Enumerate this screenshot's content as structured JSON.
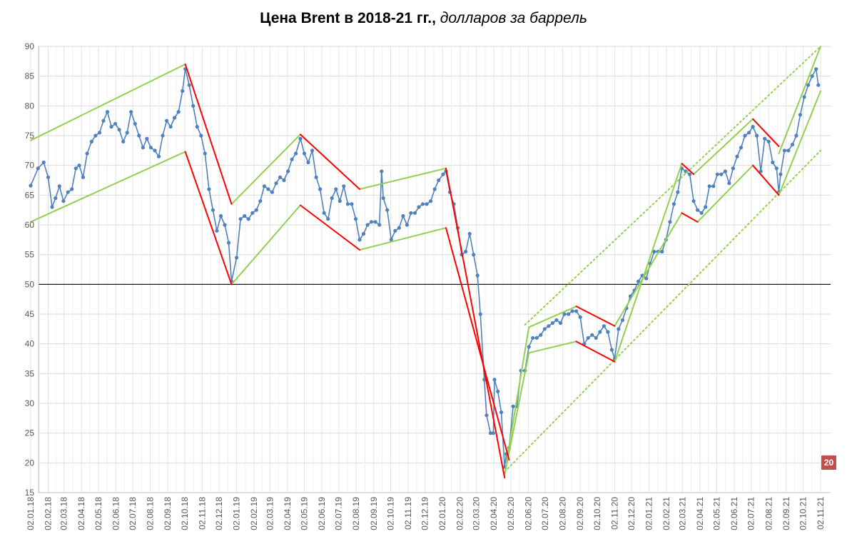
{
  "chart_data": {
    "type": "line",
    "title_bold": "Цена Brent в 2018-21 гг.,",
    "title_italic": "долларов за баррель",
    "xlabel": "",
    "ylabel": "",
    "ylim": [
      15,
      90
    ],
    "yticks": [
      15,
      20,
      25,
      30,
      35,
      40,
      45,
      50,
      55,
      60,
      65,
      70,
      75,
      80,
      85,
      90
    ],
    "grid": true,
    "reference_line": 50,
    "x_tick_labels": [
      "02.01.18",
      "02.02.18",
      "02.03.18",
      "02.04.18",
      "02.05.18",
      "02.06.18",
      "02.07.18",
      "02.08.18",
      "02.09.18",
      "02.10.18",
      "02.11.18",
      "02.12.18",
      "02.01.19",
      "02.02.19",
      "02.03.19",
      "02.04.19",
      "02.05.19",
      "02.06.19",
      "02.07.19",
      "02.08.19",
      "02.09.19",
      "02.10.19",
      "02.11.19",
      "02.12.19",
      "02.01.20",
      "02.02.20",
      "02.03.20",
      "02.04.20",
      "02.05.20",
      "02.06.20",
      "02.07.20",
      "02.08.20",
      "02.09.20",
      "02.10.20",
      "02.11.20",
      "02.12.20",
      "02.01.21",
      "02.02.21",
      "02.03.21",
      "02.04.21",
      "02.05.21",
      "02.06.21",
      "02.07.21",
      "02.08.21",
      "02.09.21",
      "02.10.21",
      "02.11.21"
    ],
    "series": [
      {
        "name": "",
        "color": "#4f81bd",
        "points": [
          [
            "02.01.18",
            66.6
          ],
          [
            "15.01.18",
            69.5
          ],
          [
            "25.01.18",
            70.5
          ],
          [
            "02.02.18",
            68.0
          ],
          [
            "09.02.18",
            63.0
          ],
          [
            "15.02.18",
            64.5
          ],
          [
            "22.02.18",
            66.5
          ],
          [
            "01.03.18",
            64.0
          ],
          [
            "09.03.18",
            65.5
          ],
          [
            "16.03.18",
            66.0
          ],
          [
            "23.03.18",
            69.5
          ],
          [
            "29.03.18",
            70.0
          ],
          [
            "05.04.18",
            68.0
          ],
          [
            "12.04.18",
            72.0
          ],
          [
            "20.04.18",
            74.0
          ],
          [
            "27.04.18",
            75.0
          ],
          [
            "04.05.18",
            75.5
          ],
          [
            "11.05.18",
            77.5
          ],
          [
            "18.05.18",
            79.0
          ],
          [
            "25.05.18",
            76.5
          ],
          [
            "01.06.18",
            77.0
          ],
          [
            "08.06.18",
            76.0
          ],
          [
            "15.06.18",
            74.0
          ],
          [
            "22.06.18",
            75.5
          ],
          [
            "29.06.18",
            79.0
          ],
          [
            "06.07.18",
            77.0
          ],
          [
            "13.07.18",
            75.0
          ],
          [
            "20.07.18",
            73.0
          ],
          [
            "27.07.18",
            74.5
          ],
          [
            "03.08.18",
            73.0
          ],
          [
            "10.08.18",
            72.5
          ],
          [
            "17.08.18",
            71.5
          ],
          [
            "24.08.18",
            75.0
          ],
          [
            "31.08.18",
            77.5
          ],
          [
            "07.09.18",
            76.5
          ],
          [
            "14.09.18",
            78.0
          ],
          [
            "21.09.18",
            79.0
          ],
          [
            "28.09.18",
            82.5
          ],
          [
            "03.10.18",
            86.2
          ],
          [
            "10.10.18",
            83.5
          ],
          [
            "17.10.18",
            80.0
          ],
          [
            "24.10.18",
            76.5
          ],
          [
            "31.10.18",
            75.0
          ],
          [
            "07.11.18",
            72.0
          ],
          [
            "14.11.18",
            66.0
          ],
          [
            "21.11.18",
            62.5
          ],
          [
            "28.11.18",
            59.0
          ],
          [
            "05.12.18",
            61.5
          ],
          [
            "12.12.18",
            60.0
          ],
          [
            "19.12.18",
            57.0
          ],
          [
            "24.12.18",
            50.5
          ],
          [
            "02.01.19",
            54.5
          ],
          [
            "09.01.19",
            61.0
          ],
          [
            "16.01.19",
            61.5
          ],
          [
            "23.01.19",
            61.0
          ],
          [
            "30.01.19",
            62.0
          ],
          [
            "06.02.19",
            62.5
          ],
          [
            "13.02.19",
            64.0
          ],
          [
            "20.02.19",
            66.5
          ],
          [
            "27.02.19",
            66.0
          ],
          [
            "06.03.19",
            65.5
          ],
          [
            "13.03.19",
            67.0
          ],
          [
            "20.03.19",
            68.0
          ],
          [
            "27.03.19",
            67.5
          ],
          [
            "03.04.19",
            69.0
          ],
          [
            "10.04.19",
            71.0
          ],
          [
            "17.04.19",
            72.0
          ],
          [
            "25.04.19",
            74.5
          ],
          [
            "02.05.19",
            72.0
          ],
          [
            "09.05.19",
            70.5
          ],
          [
            "16.05.19",
            72.5
          ],
          [
            "23.05.19",
            68.0
          ],
          [
            "30.05.19",
            66.0
          ],
          [
            "06.06.19",
            62.0
          ],
          [
            "13.06.19",
            61.0
          ],
          [
            "20.06.19",
            64.5
          ],
          [
            "27.06.19",
            66.0
          ],
          [
            "04.07.19",
            64.0
          ],
          [
            "11.07.19",
            66.5
          ],
          [
            "18.07.19",
            63.5
          ],
          [
            "25.07.19",
            63.5
          ],
          [
            "01.08.19",
            61.0
          ],
          [
            "08.08.19",
            57.5
          ],
          [
            "15.08.19",
            58.5
          ],
          [
            "22.08.19",
            60.0
          ],
          [
            "29.08.19",
            60.5
          ],
          [
            "05.09.19",
            60.5
          ],
          [
            "12.09.19",
            60.0
          ],
          [
            "16.09.19",
            69.0
          ],
          [
            "19.09.19",
            64.5
          ],
          [
            "26.09.19",
            62.5
          ],
          [
            "03.10.19",
            57.5
          ],
          [
            "10.10.19",
            59.0
          ],
          [
            "17.10.19",
            59.5
          ],
          [
            "24.10.19",
            61.5
          ],
          [
            "31.10.19",
            60.0
          ],
          [
            "07.11.19",
            62.0
          ],
          [
            "14.11.19",
            62.0
          ],
          [
            "21.11.19",
            63.0
          ],
          [
            "28.11.19",
            63.5
          ],
          [
            "05.12.19",
            63.5
          ],
          [
            "12.12.19",
            64.0
          ],
          [
            "19.12.19",
            66.0
          ],
          [
            "26.12.19",
            67.5
          ],
          [
            "03.01.20",
            68.5
          ],
          [
            "08.01.20",
            69.0
          ],
          [
            "15.01.20",
            65.5
          ],
          [
            "22.01.20",
            63.5
          ],
          [
            "29.01.20",
            59.5
          ],
          [
            "05.02.20",
            55.0
          ],
          [
            "12.02.20",
            55.5
          ],
          [
            "19.02.20",
            58.5
          ],
          [
            "26.02.20",
            55.0
          ],
          [
            "04.03.20",
            51.5
          ],
          [
            "09.03.20",
            45.0
          ],
          [
            "16.03.20",
            34.0
          ],
          [
            "20.03.20",
            28.0
          ],
          [
            "27.03.20",
            25.0
          ],
          [
            "01.04.20",
            25.0
          ],
          [
            "03.04.20",
            34.0
          ],
          [
            "09.04.20",
            32.0
          ],
          [
            "15.04.20",
            28.5
          ],
          [
            "21.04.20",
            19.3
          ],
          [
            "24.04.20",
            21.5
          ],
          [
            "29.04.20",
            22.5
          ],
          [
            "06.05.20",
            29.5
          ],
          [
            "13.05.20",
            29.5
          ],
          [
            "20.05.20",
            35.5
          ],
          [
            "27.05.20",
            35.5
          ],
          [
            "03.06.20",
            39.5
          ],
          [
            "10.06.20",
            41.0
          ],
          [
            "17.06.20",
            41.0
          ],
          [
            "24.06.20",
            41.5
          ],
          [
            "01.07.20",
            42.5
          ],
          [
            "08.07.20",
            43.0
          ],
          [
            "15.07.20",
            43.5
          ],
          [
            "22.07.20",
            44.0
          ],
          [
            "29.07.20",
            43.5
          ],
          [
            "05.08.20",
            45.0
          ],
          [
            "12.08.20",
            45.0
          ],
          [
            "19.08.20",
            45.5
          ],
          [
            "26.08.20",
            45.5
          ],
          [
            "02.09.20",
            44.5
          ],
          [
            "09.09.20",
            40.0
          ],
          [
            "16.09.20",
            41.0
          ],
          [
            "23.09.20",
            41.5
          ],
          [
            "30.09.20",
            41.0
          ],
          [
            "07.10.20",
            42.0
          ],
          [
            "14.10.20",
            43.0
          ],
          [
            "21.10.20",
            42.0
          ],
          [
            "28.10.20",
            39.0
          ],
          [
            "02.11.20",
            37.5
          ],
          [
            "09.11.20",
            42.5
          ],
          [
            "16.11.20",
            44.0
          ],
          [
            "23.11.20",
            46.0
          ],
          [
            "30.11.20",
            48.0
          ],
          [
            "07.12.20",
            49.0
          ],
          [
            "14.12.20",
            50.5
          ],
          [
            "21.12.20",
            51.5
          ],
          [
            "28.12.20",
            51.0
          ],
          [
            "04.01.21",
            53.5
          ],
          [
            "11.01.21",
            55.5
          ],
          [
            "18.01.21",
            55.5
          ],
          [
            "25.01.21",
            55.5
          ],
          [
            "01.02.21",
            57.5
          ],
          [
            "08.02.21",
            60.5
          ],
          [
            "15.02.21",
            63.5
          ],
          [
            "22.02.21",
            65.5
          ],
          [
            "01.03.21",
            69.5
          ],
          [
            "08.03.21",
            69.0
          ],
          [
            "15.03.21",
            68.5
          ],
          [
            "22.03.21",
            64.0
          ],
          [
            "29.03.21",
            62.5
          ],
          [
            "05.04.21",
            62.0
          ],
          [
            "12.04.21",
            63.0
          ],
          [
            "19.04.21",
            66.5
          ],
          [
            "26.04.21",
            66.5
          ],
          [
            "03.05.21",
            68.5
          ],
          [
            "10.05.21",
            68.5
          ],
          [
            "17.05.21",
            69.0
          ],
          [
            "24.05.21",
            67.0
          ],
          [
            "31.05.21",
            69.5
          ],
          [
            "07.06.21",
            71.5
          ],
          [
            "14.06.21",
            73.0
          ],
          [
            "21.06.21",
            75.0
          ],
          [
            "28.06.21",
            75.5
          ],
          [
            "05.07.21",
            76.5
          ],
          [
            "12.07.21",
            75.0
          ],
          [
            "19.07.21",
            69.0
          ],
          [
            "26.07.21",
            74.5
          ],
          [
            "02.08.21",
            74.0
          ],
          [
            "09.08.21",
            70.5
          ],
          [
            "16.08.21",
            69.5
          ],
          [
            "20.08.21",
            65.5
          ],
          [
            "23.08.21",
            68.5
          ],
          [
            "30.08.21",
            72.5
          ],
          [
            "06.09.21",
            72.5
          ],
          [
            "13.09.21",
            73.5
          ],
          [
            "20.09.21",
            75.0
          ],
          [
            "27.09.21",
            78.5
          ],
          [
            "04.10.21",
            81.5
          ],
          [
            "11.10.21",
            83.5
          ],
          [
            "18.10.21",
            85.0
          ],
          [
            "25.10.21",
            86.2
          ],
          [
            "29.10.21",
            83.5
          ]
        ]
      }
    ],
    "trend_lines_green": [
      [
        [
          "02.01.18",
          74.2
        ],
        [
          "03.10.18",
          87.0
        ]
      ],
      [
        [
          "02.01.18",
          60.5
        ],
        [
          "03.10.18",
          72.3
        ]
      ],
      [
        [
          "24.12.18",
          63.5
        ],
        [
          "25.04.19",
          75.2
        ]
      ],
      [
        [
          "24.12.18",
          50.0
        ],
        [
          "25.04.19",
          63.3
        ]
      ],
      [
        [
          "08.08.19",
          66.0
        ],
        [
          "08.01.20",
          69.5
        ]
      ],
      [
        [
          "08.08.19",
          55.8
        ],
        [
          "08.01.20",
          59.5
        ]
      ],
      [
        [
          "21.04.20",
          18.0
        ],
        [
          "03.06.20",
          38.5
        ]
      ],
      [
        [
          "24.04.20",
          20.0
        ],
        [
          "03.06.20",
          42.8
        ]
      ],
      [
        [
          "03.06.20",
          38.5
        ],
        [
          "26.08.20",
          40.4
        ]
      ],
      [
        [
          "03.06.20",
          42.8
        ],
        [
          "26.08.20",
          46.3
        ]
      ],
      [
        [
          "02.11.20",
          37.0
        ],
        [
          "01.03.21",
          70.3
        ]
      ],
      [
        [
          "02.11.20",
          43.0
        ],
        [
          "01.03.21",
          62.0
        ]
      ],
      [
        [
          "29.03.21",
          60.5
        ],
        [
          "05.07.21",
          70.0
        ]
      ],
      [
        [
          "22.03.21",
          68.5
        ],
        [
          "05.07.21",
          77.8
        ]
      ],
      [
        [
          "20.08.21",
          65.0
        ],
        [
          "02.11.21",
          82.5
        ]
      ],
      [
        [
          "20.08.21",
          72.0
        ],
        [
          "02.11.21",
          90.0
        ]
      ]
    ],
    "trend_lines_green_dotted": [
      [
        [
          "21.04.20",
          18.5
        ],
        [
          "02.11.21",
          72.5
        ]
      ],
      [
        [
          "27.05.20",
          43.2
        ],
        [
          "02.11.21",
          90.0
        ]
      ]
    ],
    "trend_lines_red": [
      [
        [
          "03.10.18",
          87.0
        ],
        [
          "24.12.18",
          63.5
        ]
      ],
      [
        [
          "03.10.18",
          72.3
        ],
        [
          "24.12.18",
          50.0
        ]
      ],
      [
        [
          "25.04.19",
          75.2
        ],
        [
          "08.08.19",
          66.0
        ]
      ],
      [
        [
          "25.04.19",
          63.3
        ],
        [
          "08.08.19",
          55.8
        ]
      ],
      [
        [
          "08.01.20",
          69.5
        ],
        [
          "21.04.20",
          17.5
        ]
      ],
      [
        [
          "08.01.20",
          59.5
        ],
        [
          "29.04.20",
          20.5
        ]
      ],
      [
        [
          "26.08.20",
          46.3
        ],
        [
          "02.11.20",
          43.0
        ]
      ],
      [
        [
          "26.08.20",
          40.4
        ],
        [
          "02.11.20",
          37.0
        ]
      ],
      [
        [
          "01.03.21",
          70.3
        ],
        [
          "22.03.21",
          68.5
        ]
      ],
      [
        [
          "01.03.21",
          62.0
        ],
        [
          "29.03.21",
          60.5
        ]
      ],
      [
        [
          "05.07.21",
          77.8
        ],
        [
          "20.08.21",
          73.2
        ]
      ],
      [
        [
          "05.07.21",
          70.0
        ],
        [
          "20.08.21",
          65.0
        ]
      ]
    ]
  },
  "badge": {
    "text": "20",
    "color": "#c0504d"
  }
}
